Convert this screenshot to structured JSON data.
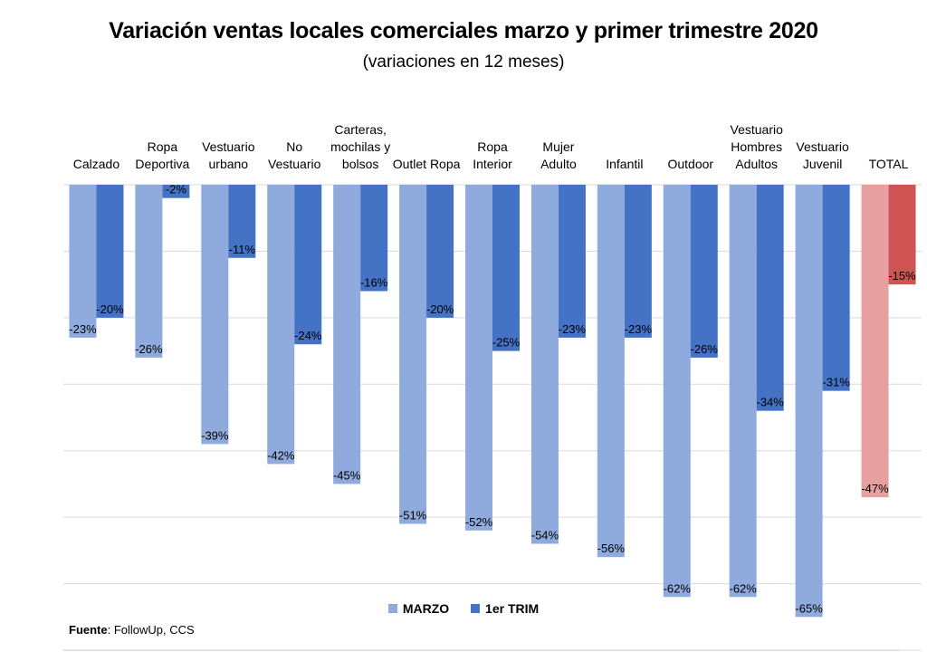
{
  "chart_data": {
    "type": "bar",
    "title": "Variación ventas locales comerciales marzo y primer trimestre 2020",
    "subtitle": "(variaciones en 12 meses)",
    "categories": [
      [
        "Calzado"
      ],
      [
        "Ropa",
        "Deportiva"
      ],
      [
        "Vestuario",
        "urbano"
      ],
      [
        "No",
        "Vestuario"
      ],
      [
        "Carteras,",
        "mochilas y",
        "bolsos"
      ],
      [
        "Outlet Ropa"
      ],
      [
        "Ropa",
        "Interior"
      ],
      [
        "Mujer",
        "Adulto"
      ],
      [
        "Infantil"
      ],
      [
        "Outdoor"
      ],
      [
        "Vestuario",
        "Hombres",
        "Adultos"
      ],
      [
        "Vestuario",
        "Juvenil"
      ],
      [
        "TOTAL"
      ]
    ],
    "series": [
      {
        "name": "MARZO",
        "values": [
          -23,
          -26,
          -39,
          -42,
          -45,
          -51,
          -52,
          -54,
          -56,
          -62,
          -62,
          -65,
          -47
        ],
        "labels": [
          "-23%",
          "-26%",
          "-39%",
          "-42%",
          "-45%",
          "-51%",
          "-52%",
          "-54%",
          "-56%",
          "-62%",
          "-62%",
          "-65%",
          "-47%"
        ]
      },
      {
        "name": "1er TRIM",
        "values": [
          -20,
          -2,
          -11,
          -24,
          -16,
          -20,
          -25,
          -23,
          -23,
          -26,
          -34,
          -31,
          -15
        ],
        "labels": [
          "-20%",
          "-2%",
          "-11%",
          "-24%",
          "-16%",
          "-20%",
          "-25%",
          "-23%",
          "-23%",
          "-26%",
          "-34%",
          "-31%",
          "-15%"
        ]
      }
    ],
    "ylim": [
      -70,
      0
    ],
    "grid": true,
    "legend": "bottom",
    "colors": {
      "marzo": "#8faadc",
      "trim": "#4472c4",
      "total_marzo": "#e6a0a0",
      "total_trim": "#d05353",
      "grid": "#d9d9d9"
    }
  },
  "legend": {
    "marzo": "MARZO",
    "trim": "1er TRIM"
  },
  "source": {
    "label": "Fuente",
    "text": ": FollowUp, CCS"
  }
}
